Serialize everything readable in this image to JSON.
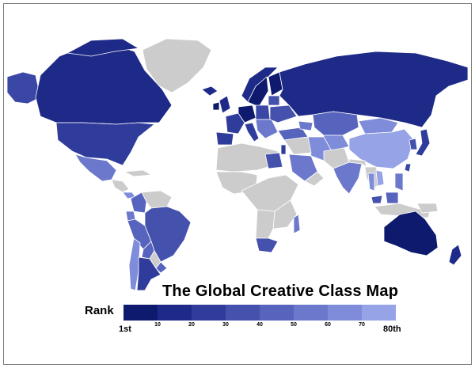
{
  "map": {
    "title": "The Global Creative Class Map",
    "legend": {
      "label": "Rank",
      "start_label": "1st",
      "end_label": "80th",
      "ticks": [
        "10",
        "20",
        "30",
        "40",
        "50",
        "60",
        "70"
      ],
      "colors": [
        "#0d1a6e",
        "#1e2a88",
        "#2f3c9c",
        "#4451ad",
        "#5764bd",
        "#6b78cc",
        "#7f8cda",
        "#96a3e6"
      ]
    },
    "no_data_color": "#cccccc"
  }
}
